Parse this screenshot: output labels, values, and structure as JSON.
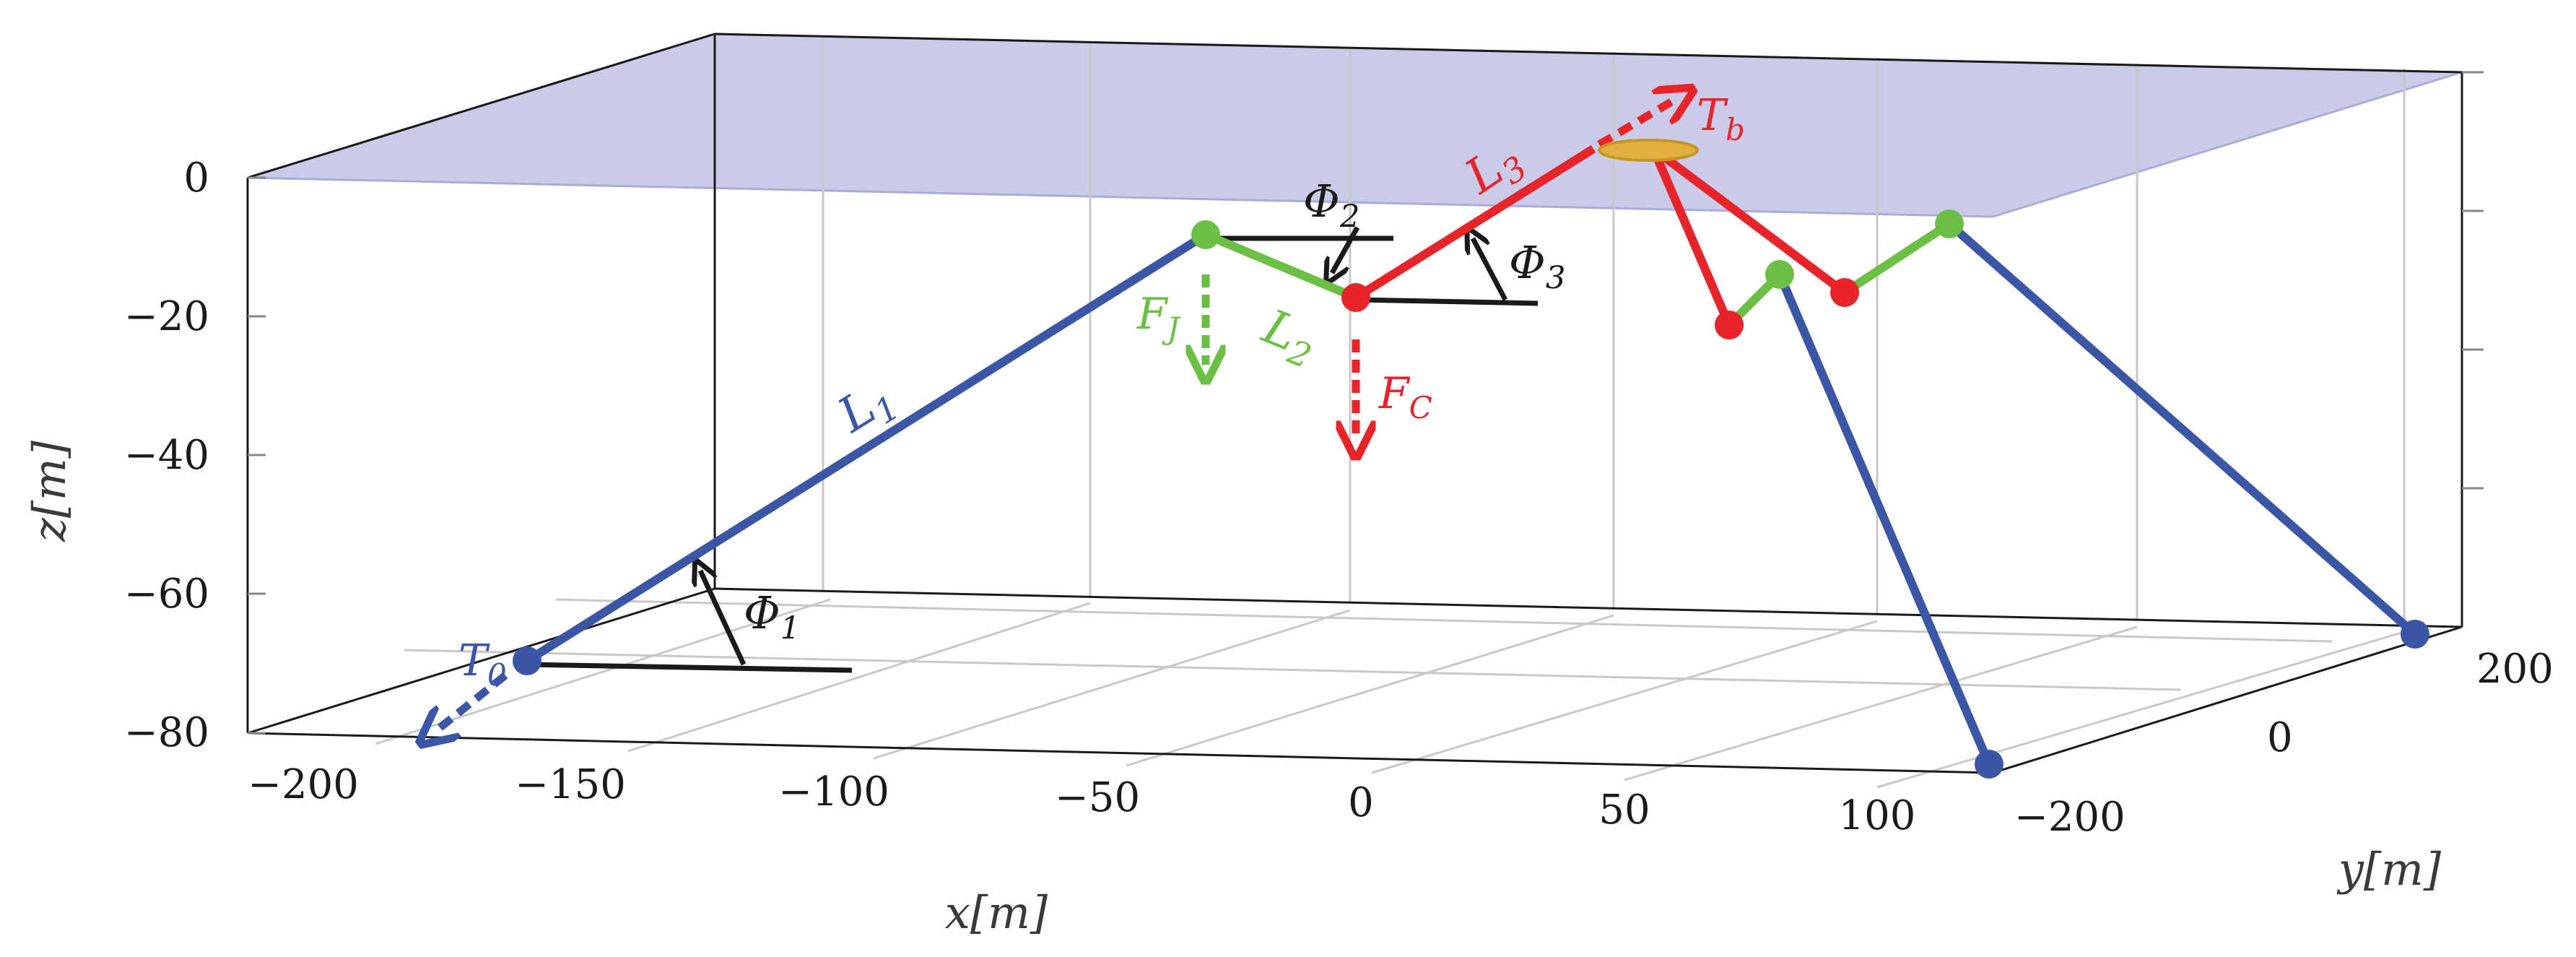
{
  "figure": {
    "x_axis_label": "x[m]",
    "y_axis_label": "y[m]",
    "z_axis_label": "z[m]",
    "x_ticks": [
      "−200",
      "−150",
      "−100",
      "−50",
      "0",
      "50",
      "100"
    ],
    "y_ticks": [
      "200",
      "0",
      "−200"
    ],
    "z_ticks": [
      "0",
      "−20",
      "−40",
      "−60",
      "−80"
    ],
    "labels": {
      "T0": {
        "main": "T",
        "sub": "0"
      },
      "L1": {
        "main": "L",
        "sub": "1"
      },
      "Phi1": {
        "main": "Φ",
        "sub": "1"
      },
      "FJ": {
        "main": "F",
        "sub": "J"
      },
      "L2": {
        "main": "L",
        "sub": "2"
      },
      "Phi2": {
        "main": "Φ",
        "sub": "2"
      },
      "FC": {
        "main": "F",
        "sub": "C"
      },
      "L3": {
        "main": "L",
        "sub": "3"
      },
      "Phi3": {
        "main": "Φ",
        "sub": "3"
      },
      "Tb": {
        "main": "T",
        "sub": "b"
      }
    },
    "colors": {
      "blue_segment": "#3a56a5",
      "green_segment": "#6cbf45",
      "red_segment": "#e8242b",
      "sea_surface": "#c9cbe8",
      "buoy": "#e0b040",
      "angle_markers": "#1a1a1a",
      "grid": "#c8c8c8"
    }
  }
}
